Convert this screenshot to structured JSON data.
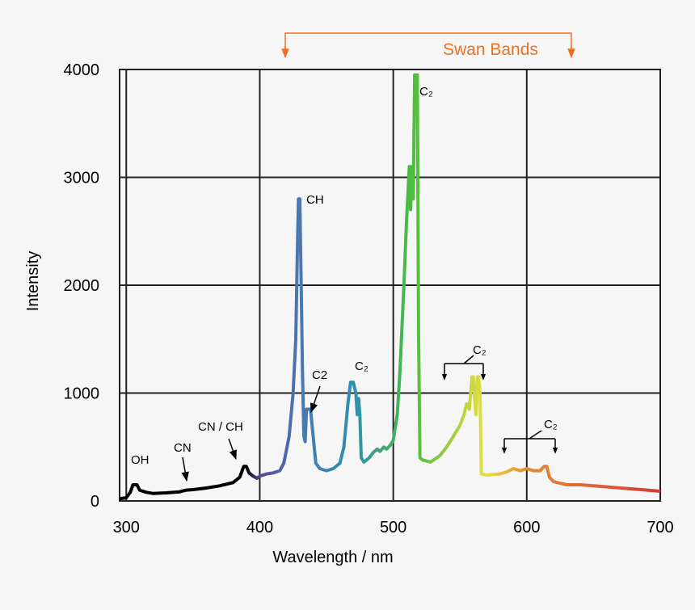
{
  "chart_data": {
    "type": "line",
    "xlabel": "Wavelength / nm",
    "ylabel": "Intensity",
    "xlim": [
      295,
      700
    ],
    "ylim": [
      0,
      4000
    ],
    "xticks": [
      300,
      400,
      500,
      600,
      700
    ],
    "yticks": [
      0,
      1000,
      2000,
      3000,
      4000
    ],
    "grid": true,
    "x": [
      295,
      300,
      303,
      305,
      308,
      310,
      315,
      320,
      330,
      340,
      345,
      350,
      360,
      370,
      380,
      385,
      388,
      390,
      392,
      395,
      398,
      400,
      405,
      410,
      415,
      418,
      422,
      425,
      427,
      428,
      429,
      430,
      431,
      432,
      433,
      434,
      435,
      436,
      438,
      440,
      442,
      445,
      450,
      455,
      460,
      463,
      466,
      468,
      470,
      472,
      473,
      474,
      475,
      476,
      478,
      482,
      485,
      488,
      490,
      493,
      495,
      498,
      500,
      503,
      505,
      508,
      510,
      512,
      513,
      514,
      515,
      516,
      518,
      519,
      520,
      522,
      528,
      535,
      540,
      545,
      550,
      553,
      555,
      557,
      558,
      559,
      560,
      561,
      562,
      563,
      564,
      565,
      566,
      570,
      580,
      585,
      590,
      595,
      600,
      605,
      610,
      613,
      615,
      617,
      620,
      623,
      630,
      640,
      650,
      660,
      670,
      680,
      690,
      700
    ],
    "values": [
      20,
      30,
      80,
      150,
      150,
      100,
      80,
      70,
      75,
      85,
      100,
      105,
      120,
      140,
      170,
      220,
      320,
      320,
      260,
      230,
      210,
      230,
      250,
      260,
      280,
      350,
      600,
      1000,
      1500,
      2200,
      2800,
      2800,
      2000,
      1200,
      600,
      550,
      850,
      850,
      850,
      600,
      350,
      300,
      280,
      300,
      350,
      500,
      900,
      1100,
      1100,
      1000,
      800,
      950,
      800,
      400,
      360,
      400,
      450,
      480,
      460,
      500,
      480,
      520,
      560,
      800,
      1200,
      2000,
      2600,
      3100,
      2700,
      3100,
      2800,
      3950,
      3950,
      1500,
      400,
      380,
      360,
      420,
      500,
      600,
      700,
      800,
      900,
      850,
      1000,
      1150,
      1150,
      950,
      800,
      1150,
      1150,
      1000,
      250,
      240,
      250,
      270,
      300,
      280,
      300,
      280,
      280,
      320,
      320,
      220,
      180,
      170,
      150,
      150,
      140,
      130,
      120,
      110,
      100,
      90
    ],
    "color_stops": [
      {
        "x": 390,
        "color": "#000000"
      },
      {
        "x": 400,
        "color": "#5a4a9c"
      },
      {
        "x": 430,
        "color": "#4a78b0"
      },
      {
        "x": 470,
        "color": "#2e90b0"
      },
      {
        "x": 515,
        "color": "#4cbe3c"
      },
      {
        "x": 545,
        "color": "#a6d040"
      },
      {
        "x": 570,
        "color": "#e6e040"
      },
      {
        "x": 600,
        "color": "#e88a30"
      },
      {
        "x": 700,
        "color": "#d03c3c"
      }
    ],
    "annotations": [
      "OH",
      "CN",
      "CN / CH",
      "CH",
      "C2",
      "C₂",
      "C₂",
      "C₂",
      "C₂",
      "Swan Bands"
    ]
  }
}
